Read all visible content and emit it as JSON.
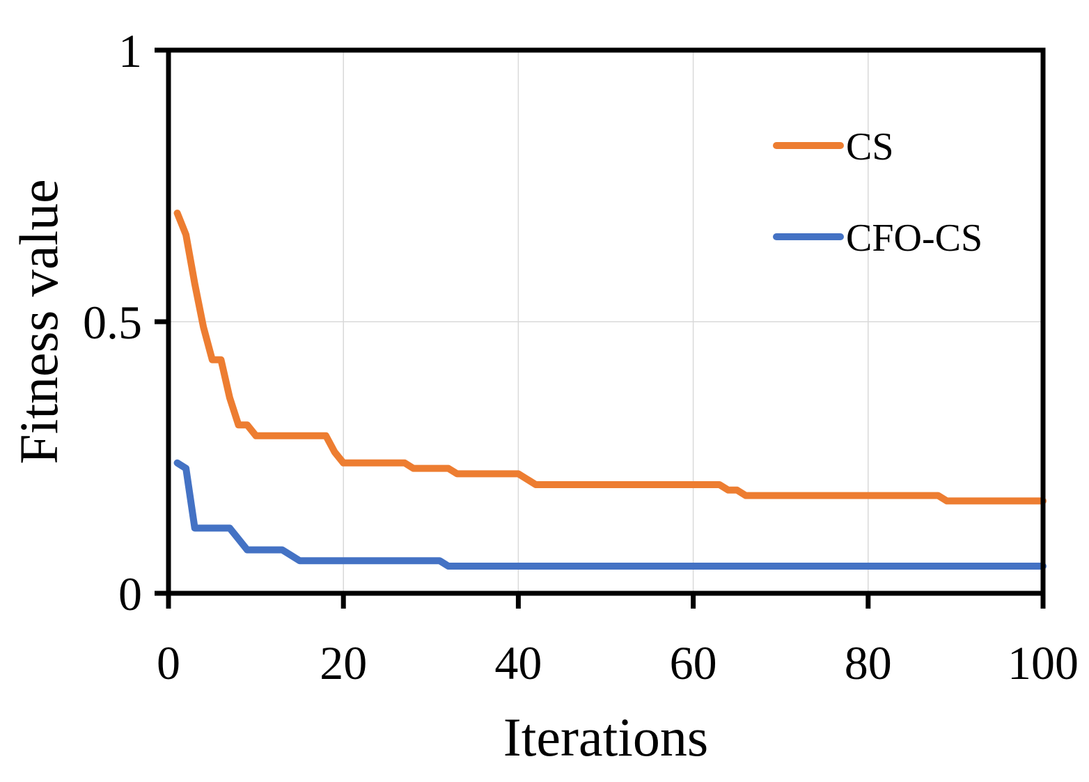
{
  "chart_data": {
    "type": "line",
    "title": "",
    "xlabel": "Iterations",
    "ylabel": "Fitness value",
    "xlim": [
      0,
      100
    ],
    "ylim": [
      0,
      1
    ],
    "xticks": [
      0,
      20,
      40,
      60,
      80,
      100
    ],
    "yticks": [
      0,
      0.5,
      1
    ],
    "xtick_labels": [
      "0",
      "20",
      "40",
      "60",
      "80",
      "100"
    ],
    "ytick_labels": [
      "0",
      "0.5",
      "1"
    ],
    "grid": true,
    "legend_position": "top-right",
    "series": [
      {
        "name": "CS",
        "color": "#ED7D31",
        "x": [
          1,
          2,
          3,
          4,
          5,
          6,
          7,
          8,
          9,
          10,
          12,
          14,
          16,
          17,
          18,
          19,
          20,
          22,
          25,
          27,
          28,
          30,
          32,
          33,
          35,
          38,
          40,
          41,
          42,
          45,
          50,
          55,
          60,
          63,
          64,
          65,
          66,
          70,
          75,
          80,
          85,
          88,
          89,
          90,
          95,
          100
        ],
        "values": [
          0.7,
          0.66,
          0.57,
          0.49,
          0.43,
          0.43,
          0.36,
          0.31,
          0.31,
          0.29,
          0.29,
          0.29,
          0.29,
          0.29,
          0.29,
          0.26,
          0.24,
          0.24,
          0.24,
          0.24,
          0.23,
          0.23,
          0.23,
          0.22,
          0.22,
          0.22,
          0.22,
          0.21,
          0.2,
          0.2,
          0.2,
          0.2,
          0.2,
          0.2,
          0.19,
          0.19,
          0.18,
          0.18,
          0.18,
          0.18,
          0.18,
          0.18,
          0.17,
          0.17,
          0.17,
          0.17
        ]
      },
      {
        "name": "CFO-CS",
        "color": "#4472C4",
        "x": [
          1,
          2,
          3,
          4,
          5,
          6,
          7,
          8,
          9,
          10,
          12,
          13,
          14,
          15,
          17,
          20,
          25,
          30,
          31,
          32,
          35,
          40,
          50,
          60,
          70,
          80,
          82,
          84,
          90,
          100
        ],
        "values": [
          0.24,
          0.23,
          0.12,
          0.12,
          0.12,
          0.12,
          0.12,
          0.1,
          0.08,
          0.08,
          0.08,
          0.08,
          0.07,
          0.06,
          0.06,
          0.06,
          0.06,
          0.06,
          0.06,
          0.05,
          0.05,
          0.05,
          0.05,
          0.05,
          0.05,
          0.05,
          0.05,
          0.05,
          0.05,
          0.05
        ]
      }
    ]
  }
}
